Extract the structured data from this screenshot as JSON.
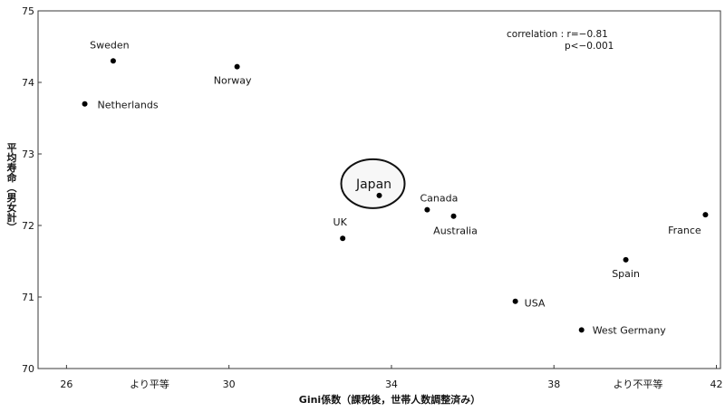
{
  "chart_data": {
    "type": "scatter",
    "xlabel": "Gini係数（課税後，世帯人数調整済み）",
    "ylabel": "平均寿命（男女計）",
    "xlim": [
      25.3,
      42.1
    ],
    "ylim": [
      70,
      75
    ],
    "x_ticks": [
      26,
      30,
      34,
      38,
      42
    ],
    "y_ticks": [
      75,
      74,
      73,
      72,
      71,
      70
    ],
    "grid": false,
    "points": [
      {
        "name": "Sweden",
        "x": 27.15,
        "y": 74.3
      },
      {
        "name": "Norway",
        "x": 30.2,
        "y": 74.22
      },
      {
        "name": "Netherlands",
        "x": 26.45,
        "y": 73.7
      },
      {
        "name": "Japan",
        "x": 33.7,
        "y": 72.42,
        "highlight": true
      },
      {
        "name": "Canada",
        "x": 34.88,
        "y": 72.22
      },
      {
        "name": "Australia",
        "x": 35.53,
        "y": 72.13
      },
      {
        "name": "UK",
        "x": 32.8,
        "y": 71.82
      },
      {
        "name": "France",
        "x": 41.73,
        "y": 72.15
      },
      {
        "name": "Spain",
        "x": 39.77,
        "y": 71.52
      },
      {
        "name": "USA",
        "x": 37.05,
        "y": 70.94
      },
      {
        "name": "West Germany",
        "x": 38.68,
        "y": 70.54
      }
    ],
    "annotations": {
      "correlation": "correlation : r=−0.81",
      "p_value": "p<−0.001",
      "more_equal": "より平等",
      "less_equal": "より不平等"
    }
  }
}
